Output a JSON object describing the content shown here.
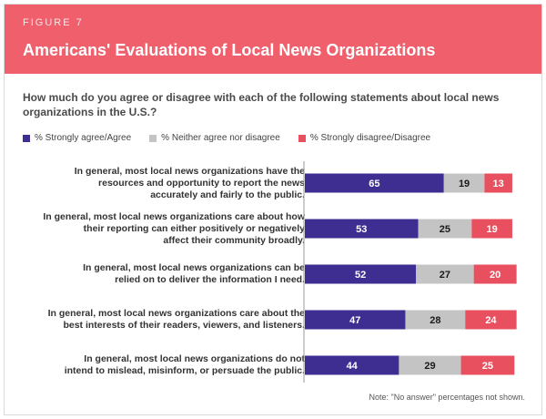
{
  "header": {
    "figure_label": "FIGURE 7",
    "title": "Americans' Evaluations of Local News Organizations"
  },
  "question": "How much do you agree or disagree with each of the following statements about local news organizations in the U.S.?",
  "note": "Note: \"No answer\" percentages not shown.",
  "colors": {
    "header_bg": "#ef5f6c",
    "agree": "#3f2e91",
    "neither": "#c4c4c4",
    "disagree": "#e8505f"
  },
  "chart_data": {
    "type": "bar",
    "orientation": "horizontal",
    "stacked": true,
    "title": "Americans' Evaluations of Local News Organizations",
    "legend_placement": "top-left",
    "categories": [
      "In general, most local news organizations have the resources and opportunity to report the news accurately and fairly to the public.",
      "In general, most local news organizations care about how their reporting can either positively or negatively affect their community broadly.",
      "In general, most local news organizations can be relied on to deliver the information I need.",
      "In general, most local news organizations care about the best interests of their readers, viewers, and listeners.",
      "In general, most local news organizations do not intend to mislead, misinform, or persuade the public."
    ],
    "category_lines": [
      [
        "In general, most local news organizations have the",
        "resources and opportunity to report the news",
        "accurately and fairly to the public."
      ],
      [
        "In general, most local news organizations care about how",
        "their reporting can either positively or negatively",
        "affect their community broadly."
      ],
      [
        "In general, most local news organizations can be",
        "relied on to deliver the information I need."
      ],
      [
        "In general, most local news organizations care about the",
        "best interests of their readers, viewers, and listeners."
      ],
      [
        "In general, most local news organizations do not",
        "intend to mislead, misinform, or persuade the public."
      ]
    ],
    "series": [
      {
        "name": "% Strongly agree/Agree",
        "values": [
          65,
          53,
          52,
          47,
          44
        ],
        "color": "#3f2e91",
        "label_color": "#ffffff"
      },
      {
        "name": "% Neither agree nor disagree",
        "values": [
          19,
          25,
          27,
          28,
          29
        ],
        "color": "#c4c4c4",
        "label_color": "#1a1a1a"
      },
      {
        "name": "% Strongly disagree/Disagree",
        "values": [
          13,
          19,
          20,
          24,
          25
        ],
        "color": "#e8505f",
        "label_color": "#ffffff"
      }
    ]
  }
}
